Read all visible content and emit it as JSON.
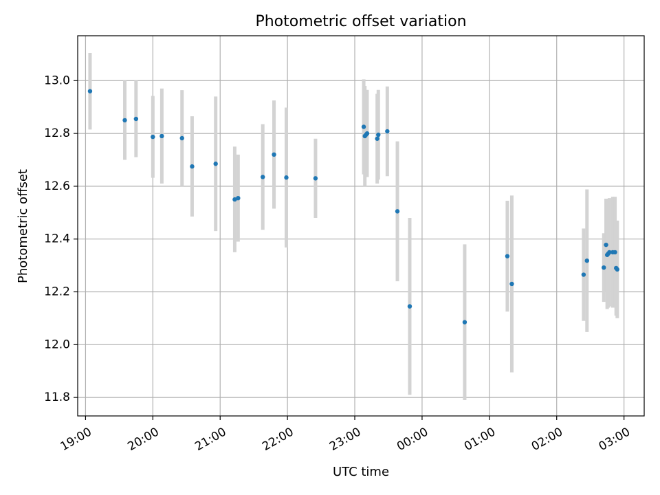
{
  "chart_data": {
    "type": "scatter",
    "title": "Photometric offset variation",
    "xlabel": "UTC time",
    "ylabel": "Photometric offset",
    "x_scale": "time",
    "x_ticks": [
      "19:00",
      "20:00",
      "21:00",
      "22:00",
      "23:00",
      "00:00",
      "01:00",
      "02:00",
      "03:00"
    ],
    "y_ticks": [
      "11.8",
      "12.0",
      "12.2",
      "12.4",
      "12.6",
      "12.8",
      "13.0"
    ],
    "xlim": [
      "18:53",
      "03:18"
    ],
    "ylim": [
      11.73,
      13.17
    ],
    "grid": true,
    "colors": {
      "points": "#1f77b4",
      "errorbars": "#d3d3d3",
      "grid": "#b0b0b0"
    },
    "points": [
      {
        "t": "19:04",
        "y": 12.96,
        "err": 0.145
      },
      {
        "t": "19:35",
        "y": 12.85,
        "err": 0.15
      },
      {
        "t": "19:45",
        "y": 12.855,
        "err": 0.145
      },
      {
        "t": "20:00",
        "y": 12.787,
        "err": 0.155
      },
      {
        "t": "20:08",
        "y": 12.79,
        "err": 0.18
      },
      {
        "t": "20:26",
        "y": 12.782,
        "err": 0.182
      },
      {
        "t": "20:35",
        "y": 12.675,
        "err": 0.19
      },
      {
        "t": "20:56",
        "y": 12.685,
        "err": 0.255
      },
      {
        "t": "21:13",
        "y": 12.55,
        "err": 0.2
      },
      {
        "t": "21:16",
        "y": 12.555,
        "err": 0.165
      },
      {
        "t": "21:38",
        "y": 12.635,
        "err": 0.2
      },
      {
        "t": "21:48",
        "y": 12.72,
        "err": 0.205
      },
      {
        "t": "21:59",
        "y": 12.633,
        "err": 0.265
      },
      {
        "t": "22:25",
        "y": 12.63,
        "err": 0.15
      },
      {
        "t": "23:08",
        "y": 12.825,
        "err": 0.18
      },
      {
        "t": "23:09",
        "y": 12.79,
        "err": 0.19
      },
      {
        "t": "23:10",
        "y": 12.795,
        "err": 0.16
      },
      {
        "t": "23:11",
        "y": 12.8,
        "err": 0.165
      },
      {
        "t": "23:20",
        "y": 12.78,
        "err": 0.17
      },
      {
        "t": "23:21",
        "y": 12.795,
        "err": 0.17
      },
      {
        "t": "23:29",
        "y": 12.808,
        "err": 0.17
      },
      {
        "t": "23:38",
        "y": 12.505,
        "err": 0.265
      },
      {
        "t": "23:49",
        "y": 12.145,
        "err": 0.335
      },
      {
        "t": "00:38",
        "y": 12.085,
        "err": 0.295
      },
      {
        "t": "01:16",
        "y": 12.335,
        "err": 0.21
      },
      {
        "t": "01:20",
        "y": 12.23,
        "err": 0.335
      },
      {
        "t": "02:24",
        "y": 12.265,
        "err": 0.175
      },
      {
        "t": "02:27",
        "y": 12.318,
        "err": 0.27
      },
      {
        "t": "02:42",
        "y": 12.292,
        "err": 0.13
      },
      {
        "t": "02:44",
        "y": 12.378,
        "err": 0.175
      },
      {
        "t": "02:45",
        "y": 12.34,
        "err": 0.205
      },
      {
        "t": "02:46",
        "y": 12.345,
        "err": 0.205
      },
      {
        "t": "02:47",
        "y": 12.35,
        "err": 0.205
      },
      {
        "t": "02:50",
        "y": 12.35,
        "err": 0.21
      },
      {
        "t": "02:52",
        "y": 12.35,
        "err": 0.21
      },
      {
        "t": "02:53",
        "y": 12.29,
        "err": 0.18
      },
      {
        "t": "02:54",
        "y": 12.285,
        "err": 0.185
      }
    ]
  }
}
